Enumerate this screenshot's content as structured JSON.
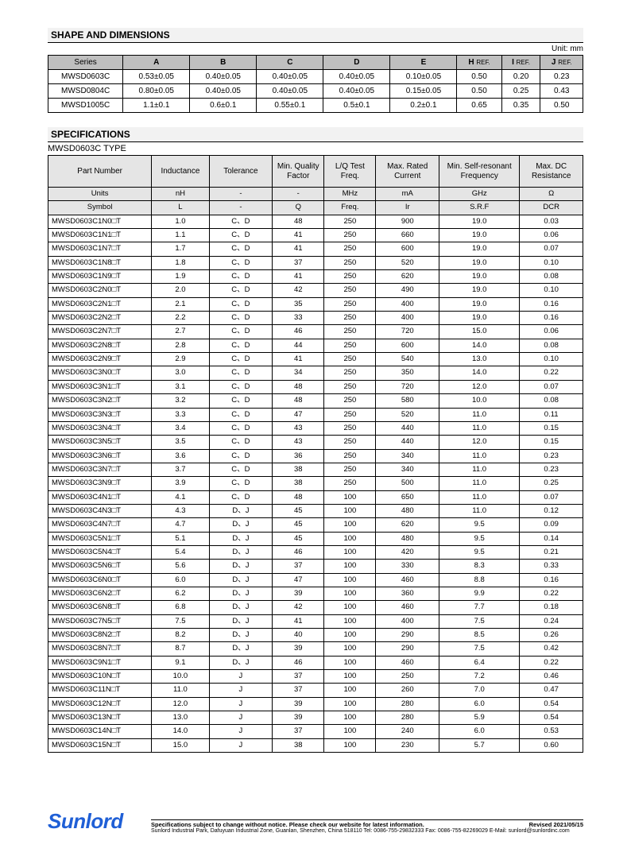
{
  "shape": {
    "title": "SHAPE AND DIMENSIONS",
    "unit": "Unit: mm",
    "headers": [
      "Series",
      "A",
      "B",
      "C",
      "D",
      "E",
      "H",
      "I",
      "J"
    ],
    "ref": "REF.",
    "rows": [
      [
        "MWSD0603C",
        "0.53±0.05",
        "0.40±0.05",
        "0.40±0.05",
        "0.40±0.05",
        "0.10±0.05",
        "0.50",
        "0.20",
        "0.23"
      ],
      [
        "MWSD0804C",
        "0.80±0.05",
        "0.40±0.05",
        "0.40±0.05",
        "0.40±0.05",
        "0.15±0.05",
        "0.50",
        "0.25",
        "0.43"
      ],
      [
        "MWSD1005C",
        "1.1±0.1",
        "0.6±0.1",
        "0.55±0.1",
        "0.5±0.1",
        "0.2±0.1",
        "0.65",
        "0.35",
        "0.50"
      ]
    ]
  },
  "spec": {
    "title": "SPECIFICATIONS",
    "subtitle": "MWSD0603C TYPE",
    "header1": [
      "Part Number",
      "Inductance",
      "Tolerance",
      "Min. Quality Factor",
      "L/Q Test Freq.",
      "Max. Rated Current",
      "Min. Self-resonant Frequency",
      "Max. DC Resistance"
    ],
    "units": [
      "Units",
      "nH",
      "-",
      "-",
      "MHz",
      "mA",
      "GHz",
      "Ω"
    ],
    "symbol": [
      "Symbol",
      "L",
      "-",
      "Q",
      "Freq.",
      "Ir",
      "S.R.F",
      "DCR"
    ],
    "rows": [
      [
        "MWSD0603C1N0□T",
        "1.0",
        "C、D",
        "48",
        "250",
        "900",
        "19.0",
        "0.03"
      ],
      [
        "MWSD0603C1N1□T",
        "1.1",
        "C、D",
        "41",
        "250",
        "660",
        "19.0",
        "0.06"
      ],
      [
        "MWSD0603C1N7□T",
        "1.7",
        "C、D",
        "41",
        "250",
        "600",
        "19.0",
        "0.07"
      ],
      [
        "MWSD0603C1N8□T",
        "1.8",
        "C、D",
        "37",
        "250",
        "520",
        "19.0",
        "0.10"
      ],
      [
        "MWSD0603C1N9□T",
        "1.9",
        "C、D",
        "41",
        "250",
        "620",
        "19.0",
        "0.08"
      ],
      [
        "MWSD0603C2N0□T",
        "2.0",
        "C、D",
        "42",
        "250",
        "490",
        "19.0",
        "0.10"
      ],
      [
        "MWSD0603C2N1□T",
        "2.1",
        "C、D",
        "35",
        "250",
        "400",
        "19.0",
        "0.16"
      ],
      [
        "MWSD0603C2N2□T",
        "2.2",
        "C、D",
        "33",
        "250",
        "400",
        "19.0",
        "0.16"
      ],
      [
        "MWSD0603C2N7□T",
        "2.7",
        "C、D",
        "46",
        "250",
        "720",
        "15.0",
        "0.06"
      ],
      [
        "MWSD0603C2N8□T",
        "2.8",
        "C、D",
        "44",
        "250",
        "600",
        "14.0",
        "0.08"
      ],
      [
        "MWSD0603C2N9□T",
        "2.9",
        "C、D",
        "41",
        "250",
        "540",
        "13.0",
        "0.10"
      ],
      [
        "MWSD0603C3N0□T",
        "3.0",
        "C、D",
        "34",
        "250",
        "350",
        "14.0",
        "0.22"
      ],
      [
        "MWSD0603C3N1□T",
        "3.1",
        "C、D",
        "48",
        "250",
        "720",
        "12.0",
        "0.07"
      ],
      [
        "MWSD0603C3N2□T",
        "3.2",
        "C、D",
        "48",
        "250",
        "580",
        "10.0",
        "0.08"
      ],
      [
        "MWSD0603C3N3□T",
        "3.3",
        "C、D",
        "47",
        "250",
        "520",
        "11.0",
        "0.11"
      ],
      [
        "MWSD0603C3N4□T",
        "3.4",
        "C、D",
        "43",
        "250",
        "440",
        "11.0",
        "0.15"
      ],
      [
        "MWSD0603C3N5□T",
        "3.5",
        "C、D",
        "43",
        "250",
        "440",
        "12.0",
        "0.15"
      ],
      [
        "MWSD0603C3N6□T",
        "3.6",
        "C、D",
        "36",
        "250",
        "340",
        "11.0",
        "0.23"
      ],
      [
        "MWSD0603C3N7□T",
        "3.7",
        "C、D",
        "38",
        "250",
        "340",
        "11.0",
        "0.23"
      ],
      [
        "MWSD0603C3N9□T",
        "3.9",
        "C、D",
        "38",
        "250",
        "500",
        "11.0",
        "0.25"
      ],
      [
        "MWSD0603C4N1□T",
        "4.1",
        "C、D",
        "48",
        "100",
        "650",
        "11.0",
        "0.07"
      ],
      [
        "MWSD0603C4N3□T",
        "4.3",
        "D、J",
        "45",
        "100",
        "480",
        "11.0",
        "0.12"
      ],
      [
        "MWSD0603C4N7□T",
        "4.7",
        "D、J",
        "45",
        "100",
        "620",
        "9.5",
        "0.09"
      ],
      [
        "MWSD0603C5N1□T",
        "5.1",
        "D、J",
        "45",
        "100",
        "480",
        "9.5",
        "0.14"
      ],
      [
        "MWSD0603C5N4□T",
        "5.4",
        "D、J",
        "46",
        "100",
        "420",
        "9.5",
        "0.21"
      ],
      [
        "MWSD0603C5N6□T",
        "5.6",
        "D、J",
        "37",
        "100",
        "330",
        "8.3",
        "0.33"
      ],
      [
        "MWSD0603C6N0□T",
        "6.0",
        "D、J",
        "47",
        "100",
        "460",
        "8.8",
        "0.16"
      ],
      [
        "MWSD0603C6N2□T",
        "6.2",
        "D、J",
        "39",
        "100",
        "360",
        "9.9",
        "0.22"
      ],
      [
        "MWSD0603C6N8□T",
        "6.8",
        "D、J",
        "42",
        "100",
        "460",
        "7.7",
        "0.18"
      ],
      [
        "MWSD0603C7N5□T",
        "7.5",
        "D、J",
        "41",
        "100",
        "400",
        "7.5",
        "0.24"
      ],
      [
        "MWSD0603C8N2□T",
        "8.2",
        "D、J",
        "40",
        "100",
        "290",
        "8.5",
        "0.26"
      ],
      [
        "MWSD0603C8N7□T",
        "8.7",
        "D、J",
        "39",
        "100",
        "290",
        "7.5",
        "0.42"
      ],
      [
        "MWSD0603C9N1□T",
        "9.1",
        "D、J",
        "46",
        "100",
        "460",
        "6.4",
        "0.22"
      ],
      [
        "MWSD0603C10N□T",
        "10.0",
        "J",
        "37",
        "100",
        "250",
        "7.2",
        "0.46"
      ],
      [
        "MWSD0603C11N□T",
        "11.0",
        "J",
        "37",
        "100",
        "260",
        "7.0",
        "0.47"
      ],
      [
        "MWSD0603C12N□T",
        "12.0",
        "J",
        "39",
        "100",
        "280",
        "6.0",
        "0.54"
      ],
      [
        "MWSD0603C13N□T",
        "13.0",
        "J",
        "39",
        "100",
        "280",
        "5.9",
        "0.54"
      ],
      [
        "MWSD0603C14N□T",
        "14.0",
        "J",
        "37",
        "100",
        "240",
        "6.0",
        "0.53"
      ],
      [
        "MWSD0603C15N□T",
        "15.0",
        "J",
        "38",
        "100",
        "230",
        "5.7",
        "0.60"
      ]
    ],
    "colwidths": [
      "18%",
      "10%",
      "11%",
      "9%",
      "9%",
      "11%",
      "14%",
      "11%"
    ]
  },
  "footer": {
    "logo": "Sunlord",
    "line1a": "Specifications subject to change without notice. Please check our website for latest information.",
    "line1b": "Revised 2021/05/15",
    "line2": "Sunlord Industrial Park, Dafuyuan Industrial Zone, Guanlan, Shenzhen, China 518110 Tel: 0086-755-29832333 Fax: 0086-755-82269029 E-Mail: sunlord@sunlordinc.com"
  }
}
